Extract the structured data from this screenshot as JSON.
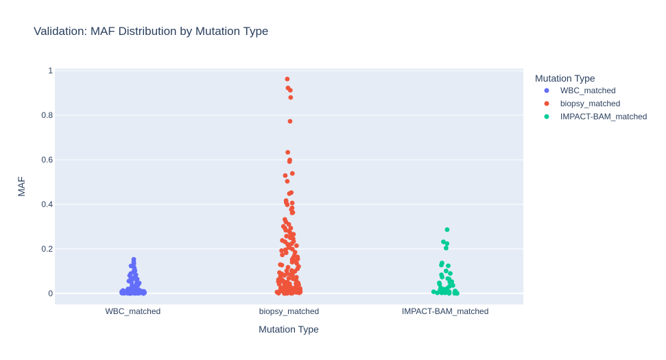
{
  "chart_data": {
    "type": "scatter",
    "title": "Validation: MAF Distribution by Mutation Type",
    "xlabel": "Mutation Type",
    "ylabel": "MAF",
    "categories": [
      "WBC_matched",
      "biopsy_matched",
      "IMPACT-BAM_matched"
    ],
    "ylim": [
      -0.05,
      1.01
    ],
    "yticks": [
      0,
      0.2,
      0.4,
      0.6,
      0.8,
      1
    ],
    "ytick_labels": [
      "0",
      "0.2",
      "0.4",
      "0.6",
      "0.8",
      "1"
    ],
    "grid": true,
    "legend": {
      "title": "Mutation Type",
      "placement": "right"
    },
    "series": [
      {
        "name": "WBC_matched",
        "color": "#636efa",
        "category": "WBC_matched",
        "values": [
          0.152,
          0.145,
          0.135,
          0.125,
          0.118,
          0.108,
          0.1,
          0.095,
          0.09,
          0.085,
          0.08,
          0.075,
          0.07,
          0.066,
          0.062,
          0.058,
          0.054,
          0.05,
          0.046,
          0.042,
          0.038,
          0.035,
          0.032,
          0.03,
          0.028,
          0.026,
          0.024,
          0.022,
          0.02,
          0.02,
          0.018,
          0.018,
          0.016,
          0.016,
          0.015,
          0.014,
          0.014,
          0.013,
          0.012,
          0.012,
          0.011,
          0.011,
          0.01,
          0.01,
          0.01,
          0.009,
          0.009,
          0.009,
          0.008,
          0.008,
          0.008,
          0.008,
          0.007,
          0.007,
          0.007,
          0.007,
          0.006,
          0.006,
          0.006,
          0.006,
          0.006,
          0.005,
          0.005,
          0.005,
          0.005,
          0.005,
          0.005,
          0.004,
          0.004,
          0.004,
          0.004,
          0.004,
          0.004,
          0.004,
          0.003,
          0.003,
          0.003,
          0.003,
          0.003,
          0.003,
          0.003,
          0.003,
          0.002,
          0.002,
          0.002,
          0.002,
          0.002,
          0.002,
          0.002,
          0.002,
          0.002,
          0.002,
          0.001,
          0.001,
          0.001,
          0.001,
          0.001,
          0.001,
          0.001,
          0.001,
          0.001,
          0.001,
          0.001,
          0.001,
          0.001,
          0.001,
          0.001,
          0.001,
          0.001,
          0.001
        ]
      },
      {
        "name": "biopsy_matched",
        "color": "#ef553b",
        "category": "biopsy_matched",
        "values": [
          0.965,
          0.925,
          0.915,
          0.88,
          0.775,
          0.635,
          0.6,
          0.59,
          0.54,
          0.53,
          0.505,
          0.455,
          0.45,
          0.415,
          0.41,
          0.405,
          0.4,
          0.385,
          0.375,
          0.365,
          0.36,
          0.33,
          0.32,
          0.31,
          0.3,
          0.295,
          0.29,
          0.285,
          0.28,
          0.27,
          0.265,
          0.26,
          0.255,
          0.25,
          0.245,
          0.24,
          0.235,
          0.23,
          0.225,
          0.22,
          0.215,
          0.21,
          0.205,
          0.2,
          0.195,
          0.19,
          0.185,
          0.18,
          0.175,
          0.17,
          0.165,
          0.16,
          0.155,
          0.15,
          0.145,
          0.14,
          0.135,
          0.13,
          0.125,
          0.12,
          0.115,
          0.11,
          0.105,
          0.1,
          0.1,
          0.095,
          0.095,
          0.09,
          0.09,
          0.085,
          0.085,
          0.08,
          0.08,
          0.075,
          0.075,
          0.07,
          0.07,
          0.065,
          0.065,
          0.06,
          0.06,
          0.058,
          0.055,
          0.055,
          0.052,
          0.05,
          0.05,
          0.048,
          0.045,
          0.045,
          0.042,
          0.04,
          0.04,
          0.038,
          0.036,
          0.035,
          0.034,
          0.032,
          0.03,
          0.03,
          0.028,
          0.027,
          0.026,
          0.025,
          0.024,
          0.023,
          0.022,
          0.021,
          0.02,
          0.02,
          0.019,
          0.018,
          0.017,
          0.016,
          0.015,
          0.015,
          0.014,
          0.013,
          0.012,
          0.012,
          0.011,
          0.01,
          0.01,
          0.009,
          0.009,
          0.008,
          0.008,
          0.007,
          0.007,
          0.006,
          0.006,
          0.006,
          0.005,
          0.005,
          0.005,
          0.004,
          0.004,
          0.004,
          0.003,
          0.003,
          0.003,
          0.003,
          0.002,
          0.002,
          0.002,
          0.002,
          0.002,
          0.001,
          0.001,
          0.001,
          0.001,
          0.001,
          0.001,
          0.001
        ]
      },
      {
        "name": "IMPACT-BAM_matched",
        "color": "#00cc96",
        "category": "IMPACT-BAM_matched",
        "values": [
          0.285,
          0.232,
          0.225,
          0.205,
          0.138,
          0.128,
          0.122,
          0.1,
          0.09,
          0.085,
          0.075,
          0.068,
          0.062,
          0.055,
          0.05,
          0.045,
          0.04,
          0.035,
          0.03,
          0.026,
          0.022,
          0.018,
          0.015,
          0.012,
          0.01,
          0.008,
          0.007,
          0.006,
          0.005,
          0.004,
          0.003,
          0.003,
          0.002,
          0.002,
          0.001,
          0.001,
          0.001,
          0.001
        ]
      }
    ]
  }
}
